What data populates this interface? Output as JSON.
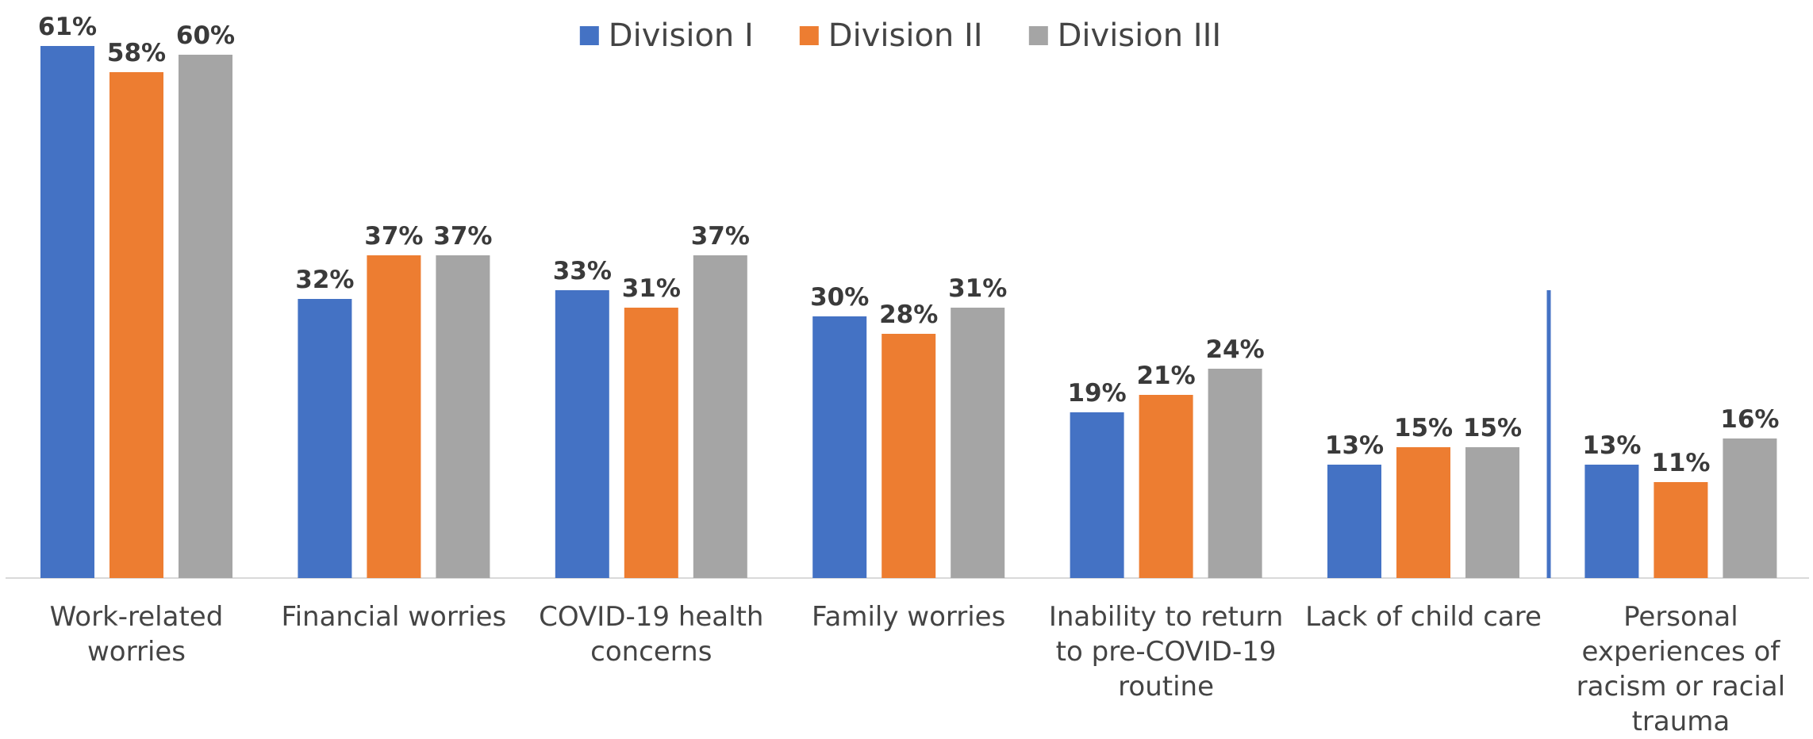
{
  "chart_data": {
    "type": "bar",
    "categories": [
      "Work-related worries",
      "Financial worries",
      "COVID-19 health concerns",
      "Family worries",
      "Inability to return to pre-COVID-19 routine",
      "Lack of child care",
      "Personal experiences of racism or racial trauma"
    ],
    "series": [
      {
        "name": "Division I",
        "color": "#4472c4",
        "values": [
          61,
          32,
          33,
          30,
          19,
          13,
          13
        ],
        "value_labels": [
          "61%",
          "32%",
          "33%",
          "30%",
          "19%",
          "13%",
          "13%"
        ]
      },
      {
        "name": "Division II",
        "color": "#ed7d31",
        "values": [
          58,
          37,
          31,
          28,
          21,
          15,
          11
        ],
        "value_labels": [
          "58%",
          "37%",
          "31%",
          "28%",
          "21%",
          "15%",
          "11%"
        ]
      },
      {
        "name": "Division III",
        "color": "#a5a5a5",
        "values": [
          60,
          37,
          37,
          31,
          24,
          15,
          16
        ],
        "value_labels": [
          "60%",
          "37%",
          "37%",
          "31%",
          "24%",
          "15%",
          "16%"
        ]
      }
    ],
    "legend": "top"
  }
}
